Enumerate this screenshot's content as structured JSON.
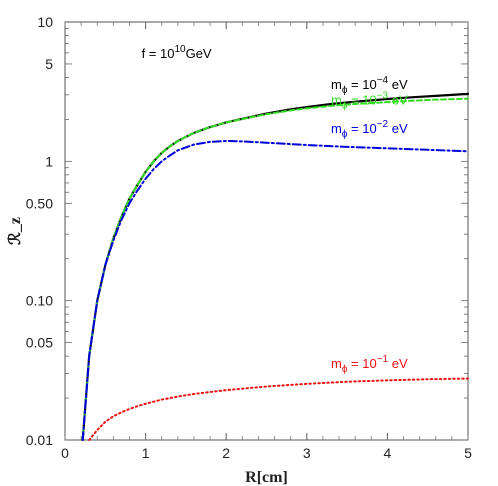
{
  "chart_data": {
    "type": "line",
    "title": "",
    "xlabel": "R[cm]",
    "ylabel": "ℛ_z",
    "xlim": [
      0,
      5
    ],
    "ylim": [
      0.01,
      10
    ],
    "yscale": "log",
    "grid": false,
    "legend": "none",
    "x_ticks": [
      {
        "value": 0,
        "label": "0"
      },
      {
        "value": 1,
        "label": "1"
      },
      {
        "value": 2,
        "label": "2"
      },
      {
        "value": 3,
        "label": "3"
      },
      {
        "value": 4,
        "label": "4"
      },
      {
        "value": 5,
        "label": "5"
      }
    ],
    "y_ticks": [
      {
        "value": 0.01,
        "label": "0.01"
      },
      {
        "value": 0.05,
        "label": "0.05"
      },
      {
        "value": 0.1,
        "label": "0.10"
      },
      {
        "value": 0.5,
        "label": "0.50"
      },
      {
        "value": 1,
        "label": "1"
      },
      {
        "value": 5,
        "label": "5"
      },
      {
        "value": 10,
        "label": "10"
      }
    ],
    "annotation_param": {
      "text": "f = 10",
      "sup": "10",
      "after": "GeV",
      "x": 0.95,
      "y": 5.5
    },
    "series": [
      {
        "label_base": "m",
        "label_sub": "ϕ",
        "label_mid": " = 10",
        "label_exp": "−4",
        "label_unit": " eV",
        "label_at": {
          "x": 3.3,
          "y": 3.3
        },
        "color": "#000000",
        "style": "solid",
        "x": [
          0.22,
          0.3,
          0.4,
          0.5,
          0.6,
          0.7,
          0.8,
          0.9,
          1.0,
          1.1,
          1.2,
          1.3,
          1.4,
          1.5,
          1.6,
          1.7,
          1.8,
          2.0,
          2.2,
          2.5,
          2.8,
          3.0,
          3.3,
          3.6,
          4.0,
          4.3,
          4.6,
          5.0
        ],
        "y": [
          0.01,
          0.04,
          0.1,
          0.18,
          0.28,
          0.4,
          0.54,
          0.68,
          0.84,
          1.0,
          1.15,
          1.28,
          1.4,
          1.5,
          1.6,
          1.68,
          1.76,
          1.9,
          2.02,
          2.2,
          2.36,
          2.45,
          2.58,
          2.68,
          2.8,
          2.88,
          2.95,
          3.05
        ]
      },
      {
        "label_base": "m",
        "label_sub": "ϕ",
        "label_mid": " = 10",
        "label_exp": "−3",
        "label_unit": " eV",
        "label_at": {
          "x": 3.3,
          "y": 2.55
        },
        "color": "#33dd22",
        "style": "dashed",
        "x": [
          0.22,
          0.3,
          0.4,
          0.5,
          0.6,
          0.7,
          0.8,
          0.9,
          1.0,
          1.1,
          1.2,
          1.3,
          1.4,
          1.5,
          1.6,
          1.7,
          1.8,
          2.0,
          2.2,
          2.5,
          2.8,
          3.0,
          3.3,
          3.6,
          4.0,
          4.3,
          4.6,
          5.0
        ],
        "y": [
          0.01,
          0.04,
          0.1,
          0.18,
          0.28,
          0.4,
          0.54,
          0.68,
          0.84,
          1.0,
          1.15,
          1.28,
          1.4,
          1.5,
          1.6,
          1.68,
          1.76,
          1.9,
          2.01,
          2.18,
          2.32,
          2.4,
          2.5,
          2.58,
          2.66,
          2.72,
          2.77,
          2.82
        ]
      },
      {
        "label_base": "m",
        "label_sub": "ϕ",
        "label_mid": " = 10",
        "label_exp": "−2",
        "label_unit": " eV",
        "label_at": {
          "x": 3.3,
          "y": 1.6
        },
        "color": "#0000dd",
        "style": "dashdot",
        "x": [
          0.22,
          0.3,
          0.4,
          0.5,
          0.6,
          0.7,
          0.8,
          0.9,
          1.0,
          1.1,
          1.2,
          1.3,
          1.4,
          1.6,
          1.8,
          2.0,
          2.2,
          2.5,
          2.8,
          3.0,
          3.5,
          4.0,
          4.5,
          5.0
        ],
        "y": [
          0.01,
          0.04,
          0.1,
          0.18,
          0.27,
          0.38,
          0.5,
          0.62,
          0.75,
          0.88,
          1.0,
          1.1,
          1.2,
          1.32,
          1.38,
          1.4,
          1.39,
          1.36,
          1.33,
          1.31,
          1.27,
          1.24,
          1.21,
          1.18
        ]
      },
      {
        "label_base": "m",
        "label_sub": "ϕ",
        "label_mid": " = 10",
        "label_exp": "−1",
        "label_unit": " eV",
        "label_at": {
          "x": 3.3,
          "y": 0.033
        },
        "color": "#ee1111",
        "style": "dotted",
        "x": [
          0.3,
          0.4,
          0.5,
          0.6,
          0.7,
          0.8,
          0.9,
          1.0,
          1.2,
          1.4,
          1.6,
          1.8,
          2.0,
          2.5,
          3.0,
          3.5,
          4.0,
          4.5,
          5.0
        ],
        "y": [
          0.01,
          0.0118,
          0.0135,
          0.0148,
          0.0158,
          0.0167,
          0.0175,
          0.0182,
          0.0195,
          0.0205,
          0.0214,
          0.0221,
          0.0228,
          0.0242,
          0.0253,
          0.0262,
          0.0268,
          0.0273,
          0.0276
        ]
      }
    ]
  }
}
